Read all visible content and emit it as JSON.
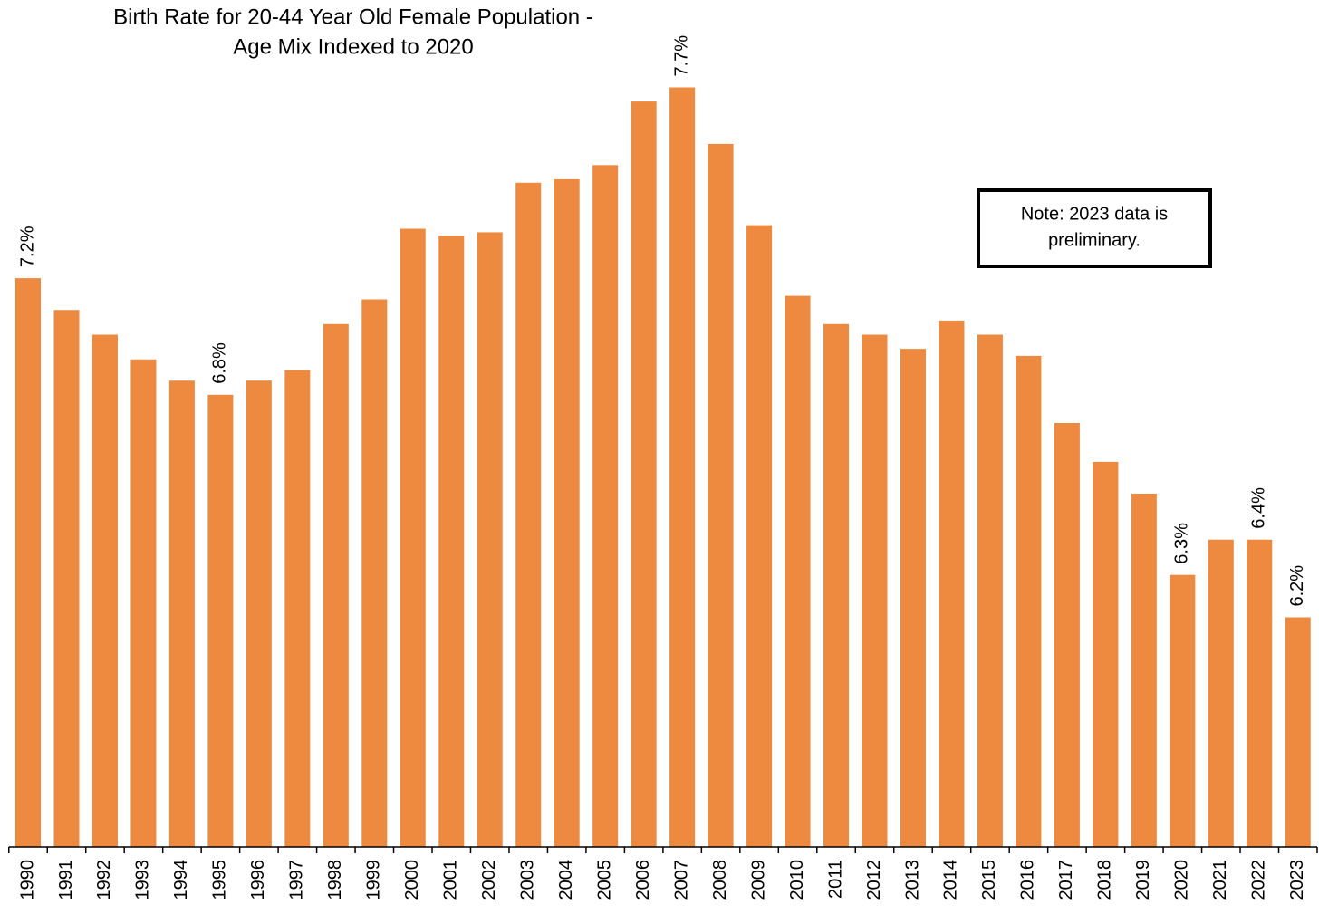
{
  "chart_data": {
    "type": "bar",
    "title": [
      "Birth Rate for 20-44 Year Old Female Population -",
      "Age Mix Indexed to 2020"
    ],
    "annotation": [
      "Note: 2023 data is",
      "preliminary."
    ],
    "categories": [
      "1990",
      "1991",
      "1992",
      "1993",
      "1994",
      "1995",
      "1996",
      "1997",
      "1998",
      "1999",
      "2000",
      "2001",
      "2002",
      "2003",
      "2004",
      "2005",
      "2006",
      "2007",
      "2008",
      "2009",
      "2010",
      "2011",
      "2012",
      "2013",
      "2014",
      "2015",
      "2016",
      "2017",
      "2018",
      "2019",
      "2020",
      "2021",
      "2022",
      "2023"
    ],
    "values": [
      7.16,
      7.07,
      7.0,
      6.93,
      6.87,
      6.83,
      6.87,
      6.9,
      7.03,
      7.1,
      7.3,
      7.28,
      7.29,
      7.43,
      7.44,
      7.48,
      7.66,
      7.7,
      7.54,
      7.31,
      7.11,
      7.03,
      7.0,
      6.96,
      7.04,
      7.0,
      6.94,
      6.75,
      6.64,
      6.55,
      6.32,
      6.42,
      6.42,
      6.2
    ],
    "value_labels": [
      "7.2%",
      null,
      null,
      null,
      null,
      "6.8%",
      null,
      null,
      null,
      null,
      null,
      null,
      null,
      null,
      null,
      null,
      null,
      "7.7%",
      null,
      null,
      null,
      null,
      null,
      null,
      null,
      null,
      null,
      null,
      null,
      null,
      "6.3%",
      null,
      "6.4%",
      "6.2%"
    ],
    "color": "#ed8a3f",
    "ylim": [
      5.55,
      7.8
    ]
  }
}
